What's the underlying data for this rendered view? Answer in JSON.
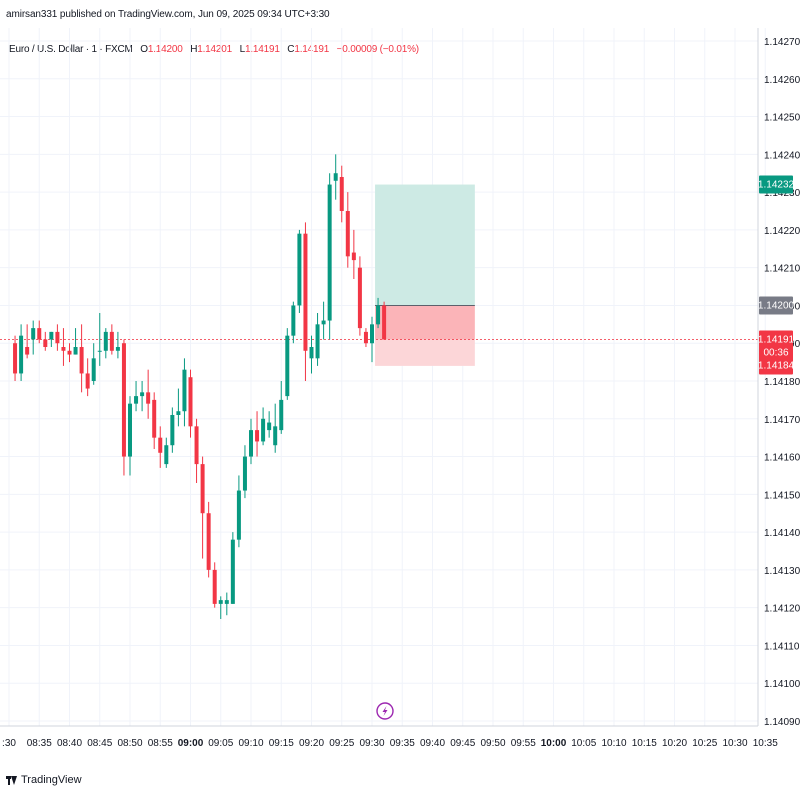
{
  "header": {
    "published": "amirsan331 published on TradingView.com, Jun 09, 2025 09:34 UTC+3:30"
  },
  "legend": {
    "symbol": "Euro / U.S. Dollar · 1 · FXCM",
    "o_label": "O",
    "o_value": "1.14200",
    "h_label": "H",
    "h_value": "1.14201",
    "l_label": "L",
    "l_value": "1.14191",
    "c_label": "C",
    "c_value": "1.14191",
    "change": "−0.00009 (−0.01%)"
  },
  "footer": {
    "brand": "TradingView"
  },
  "colors": {
    "up": "#089981",
    "down": "#f23645",
    "grid": "#f0f3fa",
    "text": "#131722",
    "tp_zone": "#cdeae4",
    "sl_zone": "#fcd6d8",
    "sl_zone_dark": "#fbb4b8",
    "entry_badge": "#787b86",
    "alert_icon": "#9c27b0"
  },
  "chart_data": {
    "type": "candlestick",
    "instrument": "Euro / U.S. Dollar",
    "timeframe": "1",
    "y_range": [
      1.1409,
      1.14275
    ],
    "x_start_minutes": 510,
    "x_end_minutes": 640,
    "y_ticks": [
      "1.14270",
      "1.14260",
      "1.14250",
      "1.14240",
      "1.14230",
      "1.14220",
      "1.14210",
      "1.14200",
      "1.14190",
      "1.14180",
      "1.14170",
      "1.14160",
      "1.14150",
      "1.14140",
      "1.14130",
      "1.14120",
      "1.14110",
      "1.14100",
      "1.14090"
    ],
    "x_ticks": [
      {
        "label": ":30",
        "t": 510,
        "bold": false
      },
      {
        "label": "08:35",
        "t": 515,
        "bold": false
      },
      {
        "label": "08:40",
        "t": 520,
        "bold": false
      },
      {
        "label": "08:45",
        "t": 525,
        "bold": false
      },
      {
        "label": "08:50",
        "t": 530,
        "bold": false
      },
      {
        "label": "08:55",
        "t": 535,
        "bold": false
      },
      {
        "label": "09:00",
        "t": 540,
        "bold": true
      },
      {
        "label": "09:05",
        "t": 545,
        "bold": false
      },
      {
        "label": "09:10",
        "t": 550,
        "bold": false
      },
      {
        "label": "09:15",
        "t": 555,
        "bold": false
      },
      {
        "label": "09:20",
        "t": 560,
        "bold": false
      },
      {
        "label": "09:25",
        "t": 565,
        "bold": false
      },
      {
        "label": "09:30",
        "t": 570,
        "bold": false
      },
      {
        "label": "09:35",
        "t": 575,
        "bold": false
      },
      {
        "label": "09:40",
        "t": 580,
        "bold": false
      },
      {
        "label": "09:45",
        "t": 585,
        "bold": false
      },
      {
        "label": "09:50",
        "t": 590,
        "bold": false
      },
      {
        "label": "09:55",
        "t": 595,
        "bold": false
      },
      {
        "label": "10:00",
        "t": 600,
        "bold": true
      },
      {
        "label": "10:05",
        "t": 605,
        "bold": false
      },
      {
        "label": "10:10",
        "t": 610,
        "bold": false
      },
      {
        "label": "10:15",
        "t": 615,
        "bold": false
      },
      {
        "label": "10:20",
        "t": 620,
        "bold": false
      },
      {
        "label": "10:25",
        "t": 625,
        "bold": false
      },
      {
        "label": "10:30",
        "t": 630,
        "bold": false
      },
      {
        "label": "10:35",
        "t": 635,
        "bold": false
      }
    ],
    "candles": [
      [
        1.1419,
        1.14192,
        1.1418,
        1.14182
      ],
      [
        1.14182,
        1.14195,
        1.1418,
        1.14192
      ],
      [
        1.14189,
        1.14195,
        1.14186,
        1.14187
      ],
      [
        1.14191,
        1.14196,
        1.14187,
        1.14194
      ],
      [
        1.14194,
        1.14196,
        1.1419,
        1.14191
      ],
      [
        1.14191,
        1.14193,
        1.14188,
        1.14189
      ],
      [
        1.14191,
        1.14193,
        1.14189,
        1.14193
      ],
      [
        1.14193,
        1.14195,
        1.14188,
        1.1419
      ],
      [
        1.14189,
        1.14194,
        1.14184,
        1.14188
      ],
      [
        1.14188,
        1.1419,
        1.14185,
        1.14187
      ],
      [
        1.14187,
        1.14194,
        1.14187,
        1.14189
      ],
      [
        1.14189,
        1.14195,
        1.14177,
        1.14182
      ],
      [
        1.14182,
        1.14186,
        1.14176,
        1.14178
      ],
      [
        1.1418,
        1.1419,
        1.14179,
        1.14186
      ],
      [
        1.14188,
        1.14198,
        1.14184,
        1.14188
      ],
      [
        1.14188,
        1.14194,
        1.14186,
        1.14193
      ],
      [
        1.14193,
        1.14195,
        1.14187,
        1.14188
      ],
      [
        1.14188,
        1.14193,
        1.14186,
        1.14189
      ],
      [
        1.1419,
        1.14191,
        1.14155,
        1.1416
      ],
      [
        1.1416,
        1.14176,
        1.14155,
        1.14174
      ],
      [
        1.14174,
        1.1418,
        1.14172,
        1.14176
      ],
      [
        1.14176,
        1.1418,
        1.14172,
        1.14177
      ],
      [
        1.14177,
        1.14183,
        1.1417,
        1.14174
      ],
      [
        1.14175,
        1.14177,
        1.14162,
        1.14165
      ],
      [
        1.14165,
        1.14168,
        1.14157,
        1.14161
      ],
      [
        1.14158,
        1.14165,
        1.14157,
        1.14163
      ],
      [
        1.14163,
        1.14173,
        1.14161,
        1.14171
      ],
      [
        1.14171,
        1.14178,
        1.14168,
        1.14172
      ],
      [
        1.14172,
        1.14186,
        1.14168,
        1.14183
      ],
      [
        1.14181,
        1.14183,
        1.14165,
        1.14168
      ],
      [
        1.14168,
        1.1417,
        1.14153,
        1.14158
      ],
      [
        1.14158,
        1.1416,
        1.14133,
        1.14145
      ],
      [
        1.14145,
        1.14148,
        1.14128,
        1.1413
      ],
      [
        1.1413,
        1.14132,
        1.1412,
        1.14121
      ],
      [
        1.14121,
        1.14123,
        1.14117,
        1.14122
      ],
      [
        1.14121,
        1.14124,
        1.14118,
        1.14122
      ],
      [
        1.14121,
        1.1414,
        1.14121,
        1.14138
      ],
      [
        1.14138,
        1.14155,
        1.14136,
        1.14151
      ],
      [
        1.14151,
        1.14163,
        1.14149,
        1.1416
      ],
      [
        1.1416,
        1.1417,
        1.14158,
        1.14167
      ],
      [
        1.14167,
        1.14172,
        1.1416,
        1.14164
      ],
      [
        1.14164,
        1.14173,
        1.14163,
        1.1417
      ],
      [
        1.14167,
        1.14172,
        1.14165,
        1.14169
      ],
      [
        1.14163,
        1.14174,
        1.14161,
        1.14168
      ],
      [
        1.14167,
        1.1418,
        1.14166,
        1.14175
      ],
      [
        1.14176,
        1.14194,
        1.14175,
        1.14192
      ],
      [
        1.14192,
        1.14201,
        1.1419,
        1.142
      ],
      [
        1.142,
        1.1422,
        1.14198,
        1.14219
      ],
      [
        1.14219,
        1.14222,
        1.1418,
        1.14188
      ],
      [
        1.14186,
        1.14192,
        1.14182,
        1.14189
      ],
      [
        1.14186,
        1.14198,
        1.14184,
        1.14195
      ],
      [
        1.14195,
        1.14201,
        1.14191,
        1.14196
      ],
      [
        1.14196,
        1.14235,
        1.14191,
        1.14232
      ],
      [
        1.14233,
        1.1424,
        1.14228,
        1.14235
      ],
      [
        1.14234,
        1.14237,
        1.14222,
        1.14225
      ],
      [
        1.14225,
        1.1423,
        1.1421,
        1.14213
      ],
      [
        1.14214,
        1.1422,
        1.14207,
        1.14212
      ],
      [
        1.1421,
        1.14213,
        1.14192,
        1.14194
      ],
      [
        1.14193,
        1.14194,
        1.14189,
        1.1419
      ],
      [
        1.1419,
        1.14197,
        1.14185,
        1.14195
      ],
      [
        1.14195,
        1.14202,
        1.14194,
        1.142
      ],
      [
        1.142,
        1.14201,
        1.14191,
        1.14191
      ]
    ],
    "position": {
      "start_index": 60,
      "end_minutes": 587,
      "entry": 1.142,
      "target": 1.14232,
      "stop": 1.14184
    },
    "current_price": 1.14191,
    "price_labels": {
      "target": "1.14232",
      "entry": "1.14200",
      "current": "1.14191",
      "countdown": "00:36",
      "stop": "1.14184"
    }
  }
}
